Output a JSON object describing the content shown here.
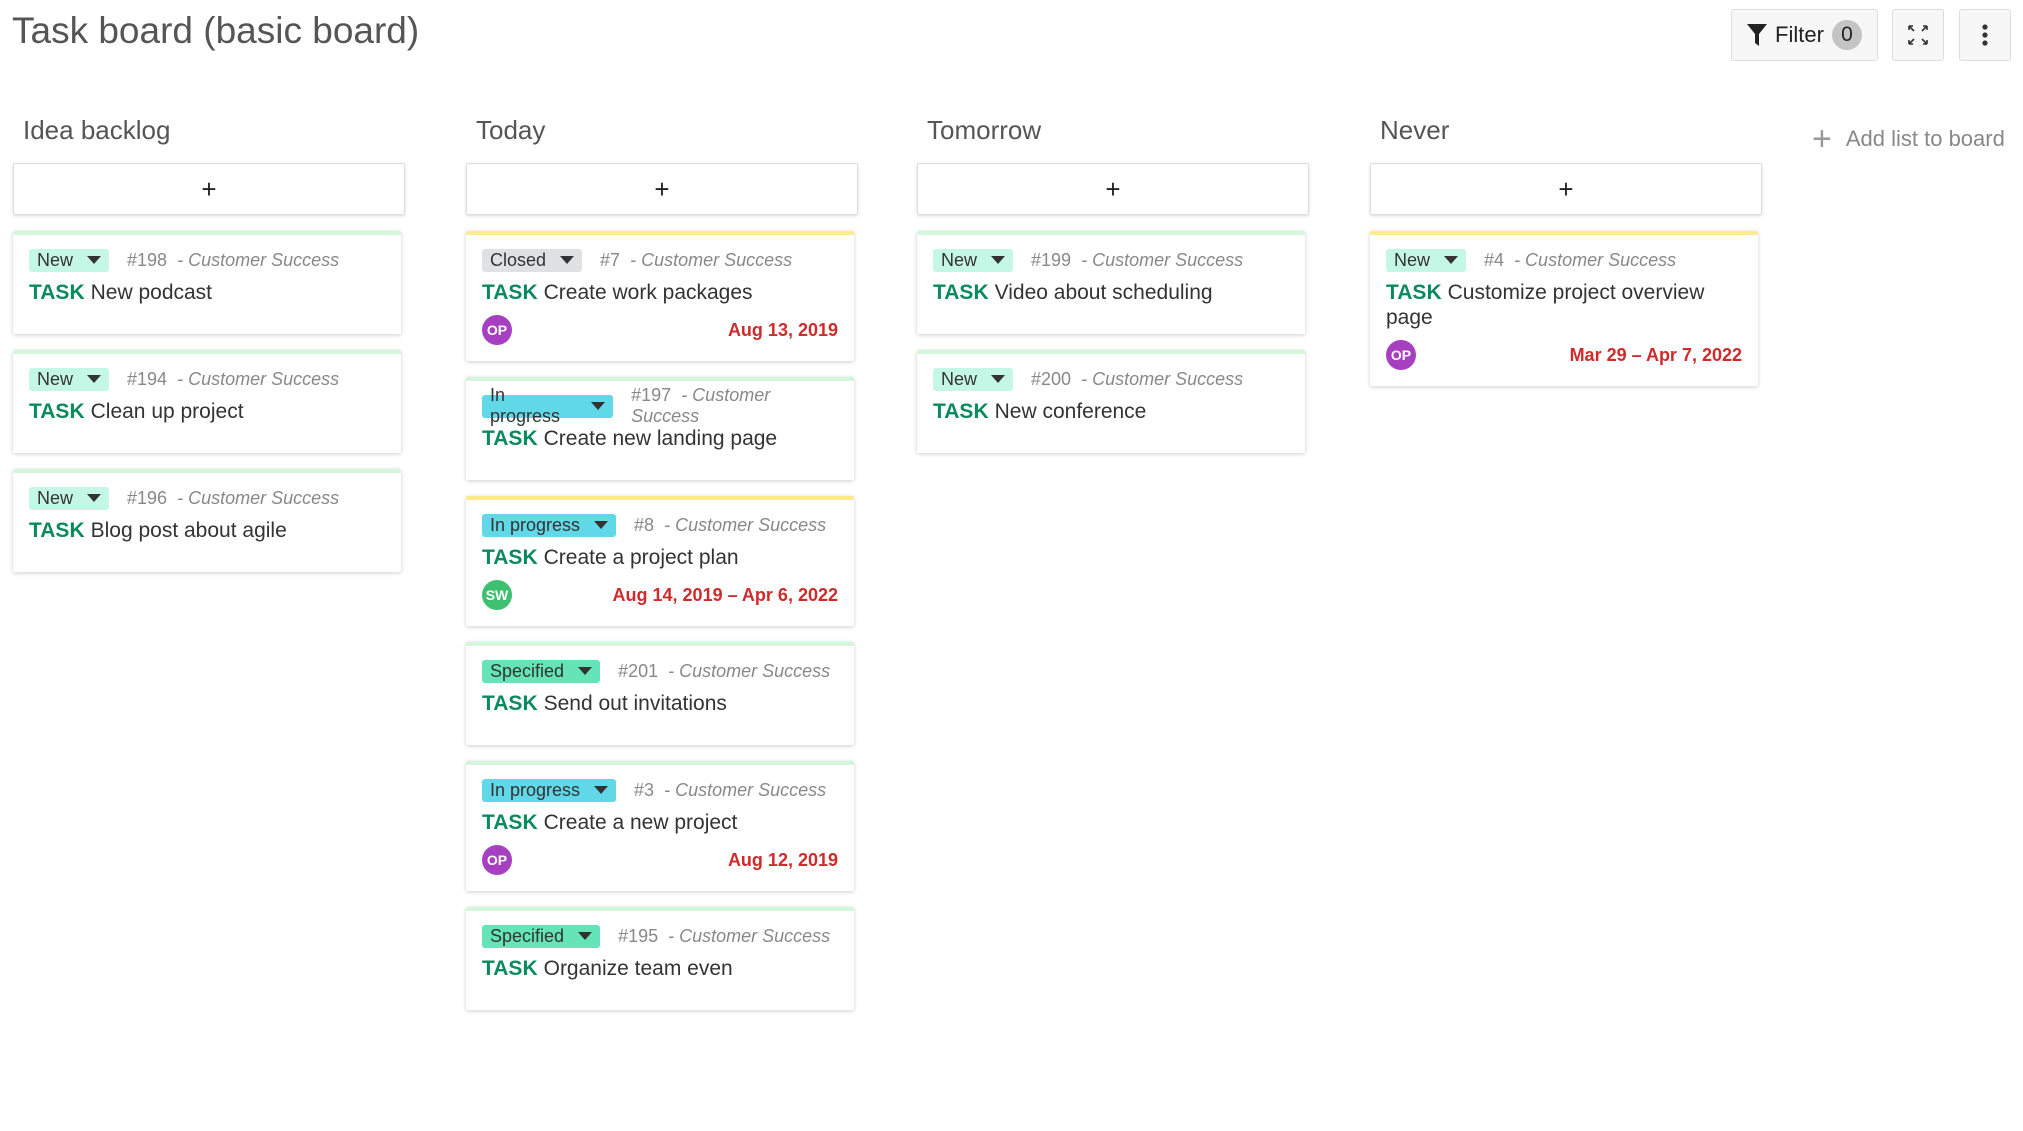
{
  "header": {
    "title": "Task board (basic board)",
    "filter_label": "Filter",
    "filter_count": "0",
    "add_list_label": "Add list to board"
  },
  "colors": {
    "task_type": "#0b8a5d",
    "date": "#d02b2b",
    "new": "#c5f7e6",
    "closed": "#dfe1e3",
    "in_progress": "#60d8e8",
    "specified": "#64e4b7"
  },
  "columns": [
    {
      "title": "Idea backlog",
      "add": "+",
      "cards": [
        {
          "status": "New",
          "id": "#198",
          "project": "- Customer Success",
          "type": "TASK",
          "subject": "New podcast",
          "top": "green"
        },
        {
          "status": "New",
          "id": "#194",
          "project": "- Customer Success",
          "type": "TASK",
          "subject": "Clean up project",
          "top": "green"
        },
        {
          "status": "New",
          "id": "#196",
          "project": "- Customer Success",
          "type": "TASK",
          "subject": "Blog post about agile",
          "top": "green"
        }
      ]
    },
    {
      "title": "Today",
      "add": "+",
      "cards": [
        {
          "status": "Closed",
          "id": "#7",
          "project": "- Customer Success",
          "type": "TASK",
          "subject": "Create work packages",
          "avatar": "OP",
          "avatar_color": "#a63fc0",
          "date": "Aug 13, 2019",
          "top": "yellow"
        },
        {
          "status": "In progress",
          "id": "#197",
          "project": "- Customer Success",
          "type": "TASK",
          "subject": "Create new landing page",
          "top": "green"
        },
        {
          "status": "In progress",
          "id": "#8",
          "project": "- Customer Success",
          "type": "TASK",
          "subject": "Create a project plan",
          "avatar": "SW",
          "avatar_color": "#3fbf70",
          "date": "Aug 14, 2019 – Apr 6, 2022",
          "top": "yellow"
        },
        {
          "status": "Specified",
          "id": "#201",
          "project": "- Customer Success",
          "type": "TASK",
          "subject": "Send out invitations",
          "top": "green"
        },
        {
          "status": "In progress",
          "id": "#3",
          "project": "- Customer Success",
          "type": "TASK",
          "subject": "Create a new project",
          "avatar": "OP",
          "avatar_color": "#a63fc0",
          "date": "Aug 12, 2019",
          "top": "green"
        },
        {
          "status": "Specified",
          "id": "#195",
          "project": "- Customer Success",
          "type": "TASK",
          "subject": "Organize team even",
          "top": "green"
        }
      ]
    },
    {
      "title": "Tomorrow",
      "add": "+",
      "cards": [
        {
          "status": "New",
          "id": "#199",
          "project": "- Customer Success",
          "type": "TASK",
          "subject": "Video about scheduling",
          "top": "green"
        },
        {
          "status": "New",
          "id": "#200",
          "project": "- Customer Success",
          "type": "TASK",
          "subject": "New conference",
          "top": "green"
        }
      ]
    },
    {
      "title": "Never",
      "add": "+",
      "cards": [
        {
          "status": "New",
          "id": "#4",
          "project": "- Customer Success",
          "type": "TASK",
          "subject": "Customize project overview page",
          "avatar": "OP",
          "avatar_color": "#a63fc0",
          "date": "Mar 29 – Apr 7, 2022",
          "top": "yellow"
        }
      ]
    }
  ]
}
